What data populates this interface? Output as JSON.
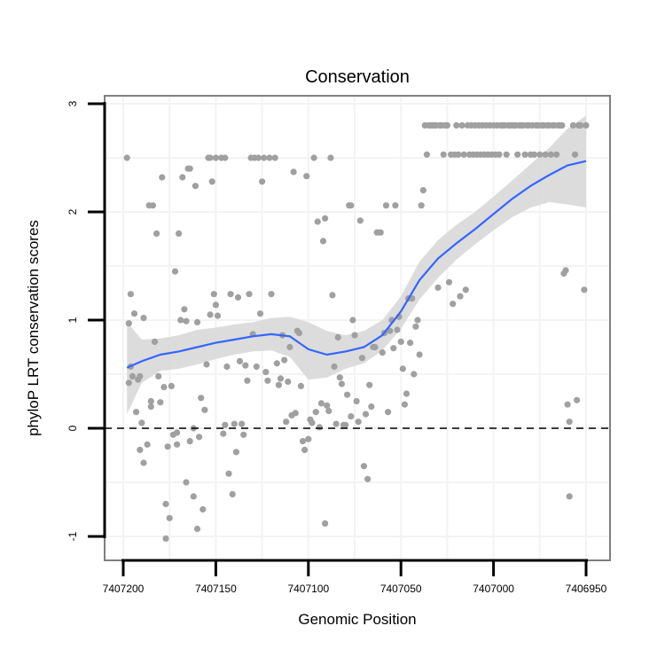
{
  "chart_data": {
    "type": "scatter",
    "title": "Conservation",
    "xlabel": "Genomic Position",
    "ylabel": "phyloP LRT conservation scores",
    "xlim": [
      7407205,
      7406945
    ],
    "ylim": [
      -1.2,
      3.05
    ],
    "x_reversed": true,
    "x_ticks": [
      7407200,
      7407150,
      7407100,
      7407050,
      7407000,
      7406950
    ],
    "x_tick_labels": [
      "7407200",
      "7407150",
      "7407100",
      "7407050",
      "7407000",
      "7406950"
    ],
    "y_ticks": [
      -1,
      0,
      1,
      2,
      3
    ],
    "y_tick_labels": [
      "-1",
      "0",
      "1",
      "2",
      "3"
    ],
    "reference_line": {
      "y": 0,
      "style": "dashed"
    },
    "grid": true,
    "colors": {
      "points": "#a0a0a0",
      "smooth": "#3366ff",
      "ribbon": "#d6d6d6",
      "panel_border": "#7f7f7f",
      "grid": "#f3f3f3"
    },
    "points": [
      [
        7407198,
        2.5
      ],
      [
        7407197,
        0.97
      ],
      [
        7407197,
        0.42
      ],
      [
        7407196,
        1.24
      ],
      [
        7407196,
        0.57
      ],
      [
        7407195,
        0.48
      ],
      [
        7407194,
        1.06
      ],
      [
        7407193,
        0.15
      ],
      [
        7407192,
        0.45
      ],
      [
        7407191,
        0.48
      ],
      [
        7407191,
        -0.2
      ],
      [
        7407190,
        0.05
      ],
      [
        7407189,
        -0.32
      ],
      [
        7407189,
        1.02
      ],
      [
        7407187,
        -0.15
      ],
      [
        7407186,
        2.06
      ],
      [
        7407185,
        0.2
      ],
      [
        7407185,
        0.25
      ],
      [
        7407184,
        2.06
      ],
      [
        7407183,
        0.8
      ],
      [
        7407182,
        1.8
      ],
      [
        7407181,
        0.48
      ],
      [
        7407180,
        0.24
      ],
      [
        7407179,
        2.32
      ],
      [
        7407178,
        0.38
      ],
      [
        7407177,
        -0.7
      ],
      [
        7407177,
        -1.02
      ],
      [
        7407176,
        -0.17
      ],
      [
        7407175,
        -0.83
      ],
      [
        7407174,
        0.39
      ],
      [
        7407173,
        -0.06
      ],
      [
        7407172,
        1.45
      ],
      [
        7407171,
        -0.04
      ],
      [
        7407171,
        -0.15
      ],
      [
        7407170,
        1.8
      ],
      [
        7407169,
        1.0
      ],
      [
        7407168,
        2.32
      ],
      [
        7407167,
        1.1
      ],
      [
        7407166,
        0.99
      ],
      [
        7407166,
        -0.5
      ],
      [
        7407165,
        2.4
      ],
      [
        7407164,
        2.4
      ],
      [
        7407164,
        -0.12
      ],
      [
        7407162,
        -0.63
      ],
      [
        7407162,
        0.0
      ],
      [
        7407161,
        2.24
      ],
      [
        7407160,
        0.98
      ],
      [
        7407160,
        -0.93
      ],
      [
        7407159,
        -0.08
      ],
      [
        7407158,
        0.28
      ],
      [
        7407157,
        -0.75
      ],
      [
        7407156,
        0.17
      ],
      [
        7407155,
        0.59
      ],
      [
        7407154,
        2.5
      ],
      [
        7407153,
        2.5
      ],
      [
        7407153,
        1.05
      ],
      [
        7407152,
        2.28
      ],
      [
        7407151,
        1.24
      ],
      [
        7407150,
        2.5
      ],
      [
        7407150,
        1.14
      ],
      [
        7407149,
        1.04
      ],
      [
        7407147,
        2.5
      ],
      [
        7407146,
        -0.05
      ],
      [
        7407145,
        2.5
      ],
      [
        7407145,
        0.03
      ],
      [
        7407144,
        0.57
      ],
      [
        7407143,
        -0.42
      ],
      [
        7407142,
        1.24
      ],
      [
        7407141,
        -0.61
      ],
      [
        7407140,
        0.04
      ],
      [
        7407139,
        -0.22
      ],
      [
        7407138,
        1.21
      ],
      [
        7407137,
        0.62
      ],
      [
        7407136,
        0.04
      ],
      [
        7407135,
        -0.06
      ],
      [
        7407134,
        0.58
      ],
      [
        7407133,
        0.44
      ],
      [
        7407132,
        1.24
      ],
      [
        7407131,
        2.5
      ],
      [
        7407130,
        0.87
      ],
      [
        7407129,
        2.5
      ],
      [
        7407128,
        0.57
      ],
      [
        7407127,
        2.5
      ],
      [
        7407126,
        1.06
      ],
      [
        7407125,
        2.28
      ],
      [
        7407124,
        2.5
      ],
      [
        7407123,
        0.52
      ],
      [
        7407122,
        0.44
      ],
      [
        7407121,
        2.5
      ],
      [
        7407120,
        1.24
      ],
      [
        7407118,
        2.5
      ],
      [
        7407117,
        0.6
      ],
      [
        7407116,
        0.4
      ],
      [
        7407115,
        0.46
      ],
      [
        7407114,
        0.86
      ],
      [
        7407113,
        0.63
      ],
      [
        7407112,
        0.06
      ],
      [
        7407111,
        0.43
      ],
      [
        7407110,
        0.75
      ],
      [
        7407109,
        0.12
      ],
      [
        7407108,
        2.37
      ],
      [
        7407107,
        0.14
      ],
      [
        7407106,
        0.9
      ],
      [
        7407105,
        0.88
      ],
      [
        7407104,
        0.39
      ],
      [
        7407103,
        -0.12
      ],
      [
        7407102,
        -0.2
      ],
      [
        7407101,
        2.33
      ],
      [
        7407100,
        -0.1
      ],
      [
        7407099,
        0.08
      ],
      [
        7407098,
        0.05
      ],
      [
        7407097,
        2.5
      ],
      [
        7407096,
        0.15
      ],
      [
        7407095,
        1.91
      ],
      [
        7407094,
        0.01
      ],
      [
        7407093,
        0.23
      ],
      [
        7407092,
        1.73
      ],
      [
        7407091,
        1.94
      ],
      [
        7407091,
        -0.88
      ],
      [
        7407090,
        0.21
      ],
      [
        7407089,
        0.16
      ],
      [
        7407088,
        2.5
      ],
      [
        7407087,
        1.23
      ],
      [
        7407086,
        0.57
      ],
      [
        7407085,
        0.04
      ],
      [
        7407084,
        0.84
      ],
      [
        7407083,
        0.47
      ],
      [
        7407082,
        0.41
      ],
      [
        7407081,
        0.03
      ],
      [
        7407080,
        0.03
      ],
      [
        7407079,
        0.31
      ],
      [
        7407078,
        2.06
      ],
      [
        7407077,
        2.06
      ],
      [
        7407077,
        0.11
      ],
      [
        7407076,
        1.0
      ],
      [
        7407075,
        0.86
      ],
      [
        7407074,
        0.25
      ],
      [
        7407073,
        0.06
      ],
      [
        7407072,
        1.92
      ],
      [
        7407071,
        0.65
      ],
      [
        7407070,
        -0.35
      ],
      [
        7407069,
        0.13
      ],
      [
        7407068,
        -0.47
      ],
      [
        7407067,
        0.4
      ],
      [
        7407066,
        0.2
      ],
      [
        7407065,
        0.75
      ],
      [
        7407064,
        0.75
      ],
      [
        7407063,
        1.81
      ],
      [
        7407062,
        1.81
      ],
      [
        7407061,
        1.81
      ],
      [
        7407060,
        0.7
      ],
      [
        7407059,
        0.88
      ],
      [
        7407058,
        2.06
      ],
      [
        7407057,
        0.15
      ],
      [
        7407056,
        0.9
      ],
      [
        7407055,
        1.0
      ],
      [
        7407054,
        0.74
      ],
      [
        7407053,
        2.06
      ],
      [
        7407052,
        0.91
      ],
      [
        7407051,
        1.03
      ],
      [
        7407050,
        0.8
      ],
      [
        7407049,
        0.55
      ],
      [
        7407048,
        0.22
      ],
      [
        7407047,
        0.32
      ],
      [
        7407046,
        1.2
      ],
      [
        7407045,
        0.79
      ],
      [
        7407044,
        1.2
      ],
      [
        7407043,
        0.5
      ],
      [
        7407042,
        0.94
      ],
      [
        7407041,
        1.0
      ],
      [
        7407040,
        0.68
      ],
      [
        7407039,
        2.06
      ],
      [
        7407038,
        2.2
      ],
      [
        7407037,
        2.8
      ],
      [
        7407036,
        2.53
      ],
      [
        7407035,
        2.8
      ],
      [
        7407034,
        2.8
      ],
      [
        7407033,
        2.8
      ],
      [
        7407032,
        2.8
      ],
      [
        7407031,
        2.8
      ],
      [
        7407030,
        1.3
      ],
      [
        7407029,
        2.8
      ],
      [
        7407028,
        2.8
      ],
      [
        7407027,
        2.53
      ],
      [
        7407026,
        2.8
      ],
      [
        7407025,
        2.8
      ],
      [
        7407024,
        1.35
      ],
      [
        7407023,
        2.53
      ],
      [
        7407022,
        1.15
      ],
      [
        7407021,
        2.53
      ],
      [
        7407020,
        2.8
      ],
      [
        7407019,
        2.53
      ],
      [
        7407018,
        1.22
      ],
      [
        7407017,
        2.8
      ],
      [
        7407016,
        2.53
      ],
      [
        7407015,
        1.28
      ],
      [
        7407014,
        2.8
      ],
      [
        7407013,
        2.53
      ],
      [
        7407012,
        2.8
      ],
      [
        7407011,
        2.53
      ],
      [
        7407010,
        2.8
      ],
      [
        7407009,
        2.53
      ],
      [
        7407008,
        2.8
      ],
      [
        7407007,
        2.53
      ],
      [
        7407006,
        2.8
      ],
      [
        7407005,
        2.53
      ],
      [
        7407004,
        2.8
      ],
      [
        7407003,
        2.53
      ],
      [
        7407002,
        2.8
      ],
      [
        7407001,
        2.53
      ],
      [
        7407000,
        2.8
      ],
      [
        7406999,
        2.53
      ],
      [
        7406998,
        2.8
      ],
      [
        7406997,
        2.53
      ],
      [
        7406996,
        2.8
      ],
      [
        7406995,
        2.8
      ],
      [
        7406994,
        2.8
      ],
      [
        7406993,
        2.53
      ],
      [
        7406992,
        2.8
      ],
      [
        7406991,
        2.8
      ],
      [
        7406990,
        2.8
      ],
      [
        7406989,
        2.8
      ],
      [
        7406988,
        2.8
      ],
      [
        7406987,
        2.53
      ],
      [
        7406986,
        2.8
      ],
      [
        7406985,
        2.8
      ],
      [
        7406984,
        2.8
      ],
      [
        7406983,
        2.53
      ],
      [
        7406982,
        2.8
      ],
      [
        7406981,
        2.8
      ],
      [
        7406980,
        2.53
      ],
      [
        7406979,
        2.8
      ],
      [
        7406978,
        2.53
      ],
      [
        7406977,
        2.8
      ],
      [
        7406976,
        2.8
      ],
      [
        7406975,
        2.53
      ],
      [
        7406974,
        2.8
      ],
      [
        7406973,
        2.8
      ],
      [
        7406972,
        2.53
      ],
      [
        7406971,
        2.8
      ],
      [
        7406970,
        2.8
      ],
      [
        7406969,
        2.53
      ],
      [
        7406968,
        2.8
      ],
      [
        7406967,
        2.8
      ],
      [
        7406966,
        2.53
      ],
      [
        7406965,
        2.8
      ],
      [
        7406964,
        2.8
      ],
      [
        7406963,
        2.8
      ],
      [
        7406962,
        1.43
      ],
      [
        7406961,
        1.46
      ],
      [
        7406960,
        0.22
      ],
      [
        7406959,
        0.06
      ],
      [
        7406959,
        -0.63
      ],
      [
        7406957,
        2.8
      ],
      [
        7406956,
        2.53
      ],
      [
        7406955,
        0.26
      ],
      [
        7406954,
        2.8
      ],
      [
        7406953,
        2.8
      ],
      [
        7406951,
        1.28
      ],
      [
        7406950,
        2.8
      ]
    ],
    "smooth_x": [
      7407198,
      7407190,
      7407180,
      7407170,
      7407160,
      7407150,
      7407140,
      7407130,
      7407120,
      7407110,
      7407100,
      7407090,
      7407080,
      7407070,
      7407060,
      7407050,
      7407040,
      7407030,
      7407020,
      7407010,
      7407000,
      7406990,
      7406980,
      7406970,
      7406960,
      7406950
    ],
    "smooth_y": [
      0.56,
      0.62,
      0.68,
      0.71,
      0.75,
      0.79,
      0.82,
      0.85,
      0.87,
      0.85,
      0.73,
      0.68,
      0.71,
      0.75,
      0.86,
      1.08,
      1.37,
      1.57,
      1.71,
      1.84,
      1.98,
      2.12,
      2.24,
      2.34,
      2.43,
      2.47
    ],
    "smooth_lo": [
      0.13,
      0.42,
      0.53,
      0.55,
      0.59,
      0.64,
      0.68,
      0.71,
      0.72,
      0.66,
      0.45,
      0.47,
      0.55,
      0.6,
      0.72,
      0.92,
      1.19,
      1.39,
      1.56,
      1.7,
      1.83,
      1.95,
      2.04,
      2.09,
      2.07,
      2.04
    ],
    "smooth_hi": [
      0.98,
      0.82,
      0.83,
      0.86,
      0.91,
      0.93,
      0.96,
      0.98,
      1.02,
      1.03,
      0.98,
      0.9,
      0.86,
      0.9,
      1.0,
      1.22,
      1.54,
      1.74,
      1.88,
      2.0,
      2.14,
      2.29,
      2.44,
      2.59,
      2.77,
      2.89
    ]
  }
}
